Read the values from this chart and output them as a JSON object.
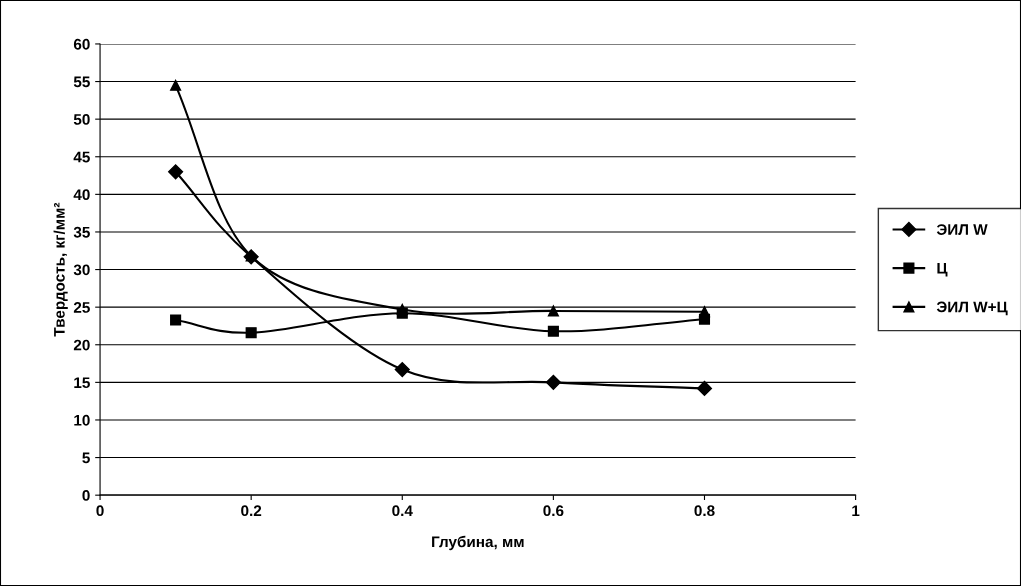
{
  "chart_data": {
    "type": "line",
    "xlabel": "Глубина, мм",
    "ylabel": "Твердость, кг/мм²",
    "x": [
      0.1,
      0.2,
      0.4,
      0.6,
      0.8
    ],
    "series": [
      {
        "name": "ЭИЛ W",
        "color": "#000000",
        "marker": "diamond",
        "values": [
          43,
          31.7,
          16.7,
          15,
          14.2
        ]
      },
      {
        "name": "Ц",
        "color": "#000000",
        "marker": "square",
        "values": [
          23.3,
          21.6,
          24.2,
          21.8,
          23.4
        ]
      },
      {
        "name": "ЭИЛ W+Ц",
        "color": "#000000",
        "marker": "triangle",
        "values": [
          54.5,
          31.8,
          24.7,
          24.5,
          24.4
        ]
      }
    ],
    "xlim": [
      0,
      1
    ],
    "xticks": [
      0,
      {
        "value": 0.2,
        "label": "0.2"
      },
      {
        "value": 0.4,
        "label": "0.4"
      },
      {
        "value": 0.6,
        "label": "0.6"
      },
      {
        "value": 0.8,
        "label": "0.8"
      },
      1
    ],
    "ylim": [
      0,
      60
    ],
    "yticks": [
      0,
      5,
      10,
      15,
      20,
      25,
      30,
      35,
      40,
      45,
      50,
      55,
      60
    ],
    "grid": "y",
    "legend": "right",
    "line_style": "solid"
  }
}
